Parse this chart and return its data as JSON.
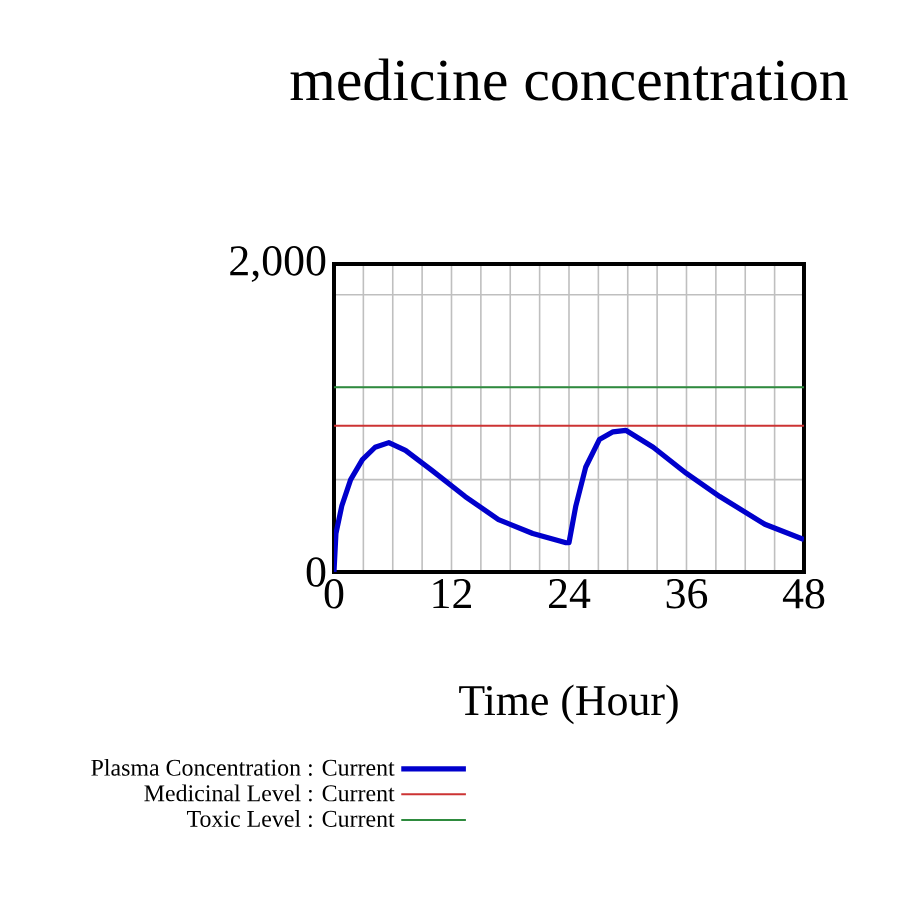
{
  "chart_data": {
    "type": "line",
    "title": "medicine concentration",
    "xlabel": "Time (Hour)",
    "xlim": [
      0,
      48
    ],
    "xticks": [
      0,
      {
        "value": 3,
        "label": null
      },
      {
        "value": 6,
        "label": null
      },
      {
        "value": 9,
        "label": null
      },
      12,
      {
        "value": 15,
        "label": null
      },
      {
        "value": 18,
        "label": null
      },
      {
        "value": 21,
        "label": null
      },
      24,
      {
        "value": 27,
        "label": null
      },
      {
        "value": 30,
        "label": null
      },
      {
        "value": 33,
        "label": null
      },
      36,
      {
        "value": 39,
        "label": null
      },
      {
        "value": 42,
        "label": null
      },
      {
        "value": 45,
        "label": null
      },
      48
    ],
    "ylim": [
      0,
      2000
    ],
    "yticks": [
      0,
      {
        "value": 600,
        "label": null
      },
      {
        "value": 1200,
        "label": null
      },
      {
        "value": 1800,
        "label": null
      },
      {
        "value": 2000,
        "label": "2,000"
      }
    ],
    "grid": true,
    "legend": "bottom",
    "series": [
      {
        "name": "Plasma Concentration : Current",
        "color": "#0000cc",
        "x": [
          0,
          0.2,
          0.8,
          1.7,
          2.9,
          4.2,
          5.6,
          7.3,
          10.0,
          13.4,
          16.8,
          20.3,
          23.7,
          24,
          24.7,
          25.7,
          27.1,
          28.5,
          29.8,
          32.6,
          36,
          39.4,
          44,
          48
        ],
        "values": [
          0,
          250,
          430,
          600,
          730,
          810,
          840,
          790,
          660,
          490,
          340,
          250,
          190,
          190,
          430,
          680,
          860,
          910,
          920,
          810,
          640,
          490,
          310,
          210
        ]
      },
      {
        "name": "Medicinal Level : Current",
        "color": "#cc3333",
        "x": [
          0,
          48
        ],
        "values": [
          950,
          950
        ]
      },
      {
        "name": "Toxic Level : Current",
        "color": "#2e8b3e",
        "x": [
          0,
          48
        ],
        "values": [
          1200,
          1200
        ]
      }
    ]
  }
}
